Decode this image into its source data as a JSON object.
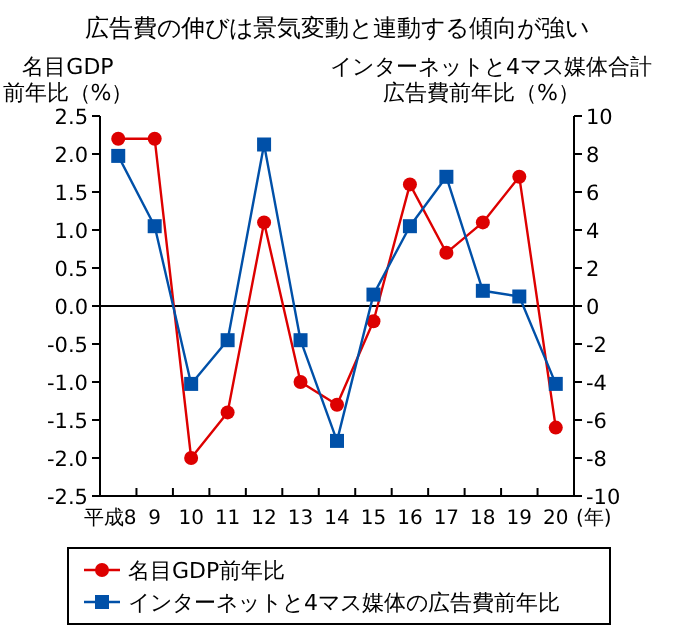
{
  "chart_data": {
    "type": "line",
    "title": "広告費の伸びは景気変動と連動する傾向が強い",
    "ylabel": "名目GDP\n前年比（%）",
    "y2label": "インターネットと4マス媒体合計広告費前年比（%）",
    "categories": [
      "平成8",
      "9",
      "10",
      "11",
      "12",
      "13",
      "14",
      "15",
      "16",
      "17",
      "18",
      "19",
      "20"
    ],
    "series": [
      {
        "name": "名目GDP前年比",
        "color": "#dd0000",
        "marker": "circle",
        "values": [
          2.2,
          2.2,
          -2.0,
          -1.4,
          1.1,
          -1.0,
          -1.3,
          -0.2,
          1.6,
          0.7,
          1.1,
          1.7,
          -1.6
        ]
      },
      {
        "name": "インターネットと4マス媒体の広告費前年比",
        "color": "#0050a8",
        "marker": "square",
        "axis": "y2",
        "values": [
          7.9,
          4.2,
          -4.1,
          -1.8,
          8.5,
          -1.8,
          -7.1,
          0.6,
          4.2,
          6.8,
          0.8,
          0.5,
          -4.1
        ]
      }
    ],
    "ylim": [
      -2.5,
      2.5
    ],
    "yticks": [
      {
        "value": -2.5,
        "label": "-2.5"
      },
      {
        "value": -2,
        "label": "-2.0"
      },
      {
        "value": -1.5,
        "label": "-1.5"
      },
      {
        "value": -1,
        "label": "-1.0"
      },
      {
        "value": -0.5,
        "label": "-0.5"
      },
      {
        "value": 0,
        "label": "0.0"
      },
      {
        "value": 0.5,
        "label": "0.5"
      },
      {
        "value": 1,
        "label": "1.0"
      },
      {
        "value": 1.5,
        "label": "1.5"
      },
      {
        "value": 2,
        "label": "2.0"
      },
      {
        "value": 2.5,
        "label": "2.5"
      }
    ],
    "y2lim": [
      -10,
      10
    ],
    "y2ticks": [
      -10,
      -8,
      -6,
      -4,
      -2,
      0,
      2,
      4,
      6,
      8,
      10
    ],
    "ref_lines": [
      {
        "axis": "y",
        "value": 0,
        "color": "#000000"
      }
    ],
    "annotations": [
      "(年)"
    ],
    "grid": false,
    "legend": "bottom"
  }
}
